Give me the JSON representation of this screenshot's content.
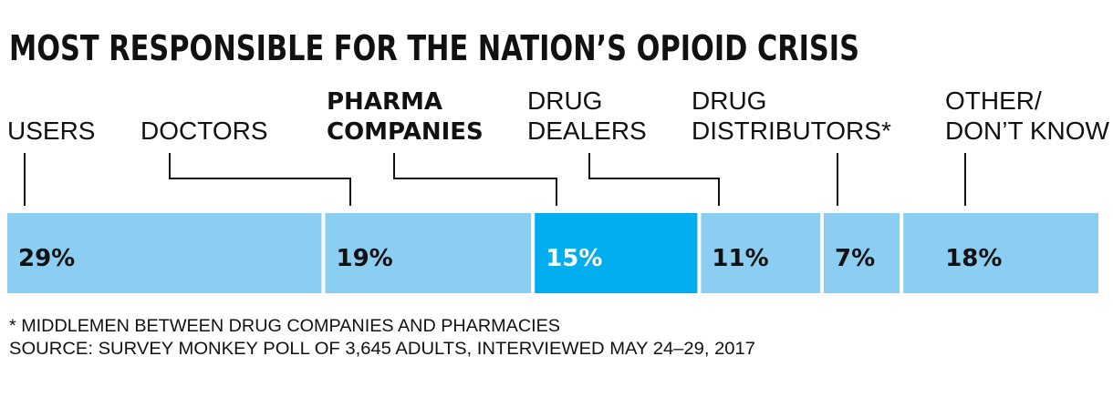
{
  "chart_data": {
    "type": "bar",
    "subtype": "stacked-100-horizontal",
    "title": "MOST RESPONSIBLE FOR THE NATION’S OPIOID CRISIS",
    "categories": [
      "USERS",
      "DOCTORS",
      "PHARMA COMPANIES",
      "DRUG DEALERS",
      "DRUG DISTRIBUTORS*",
      "OTHER/ DON’T KNOW"
    ],
    "category_lines": [
      [
        "USERS"
      ],
      [
        "DOCTORS"
      ],
      [
        "PHARMA",
        "COMPANIES"
      ],
      [
        "DRUG",
        "DEALERS"
      ],
      [
        "DRUG",
        "DISTRIBUTORS*"
      ],
      [
        "OTHER/",
        "DON’T KNOW"
      ]
    ],
    "values": [
      29,
      19,
      15,
      11,
      7,
      18
    ],
    "value_labels": [
      "29%",
      "19%",
      "15%",
      "11%",
      "7%",
      "18%"
    ],
    "highlight_index": 2,
    "colors": {
      "bar": "#8ccdf2",
      "highlight": "#00aeef",
      "text": "#111111",
      "highlight_text": "#ffffff"
    },
    "footnotes": [
      "* MIDDLEMEN BETWEEN DRUG COMPANIES AND PHARMACIES",
      "SOURCE: SURVEY MONKEY POLL OF 3,645 ADULTS, INTERVIEWED MAY 24–29, 2017"
    ]
  }
}
